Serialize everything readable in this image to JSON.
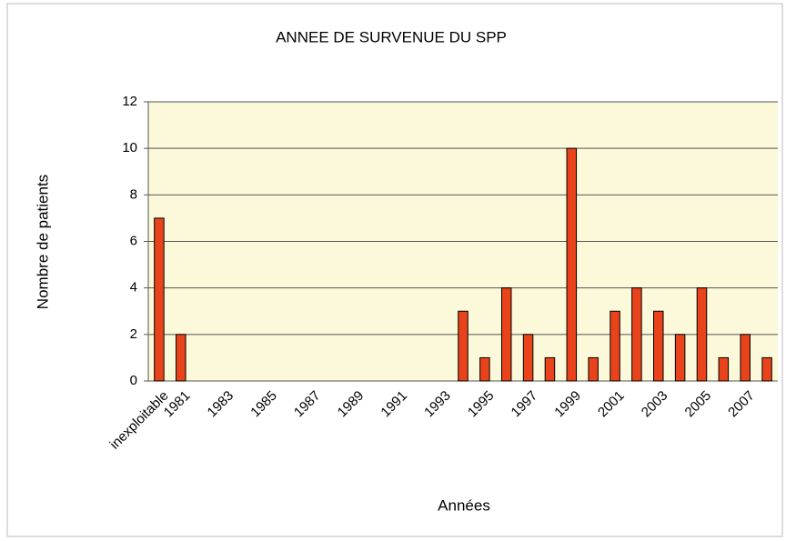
{
  "chart_data": {
    "type": "bar",
    "title": "ANNEE DE SURVENUE DU SPP",
    "x_label": "Années",
    "y_label": "Nombre de patients",
    "categories": [
      "inexploitable",
      "1981",
      null,
      "1983",
      null,
      "1985",
      null,
      "1987",
      null,
      "1989",
      null,
      "1991",
      null,
      "1993",
      null,
      "1995",
      null,
      "1997",
      null,
      "1999",
      null,
      "2001",
      null,
      "2003",
      null,
      "2005",
      null,
      "2007",
      null
    ],
    "values": [
      7,
      2,
      0,
      0,
      0,
      0,
      0,
      0,
      0,
      0,
      0,
      0,
      0,
      0,
      3,
      1,
      4,
      2,
      1,
      10,
      1,
      3,
      4,
      3,
      2,
      4,
      1,
      2,
      1
    ],
    "color": "#e8431a",
    "ylim": [
      0,
      12
    ],
    "yticks": [
      0,
      2,
      4,
      6,
      8,
      10,
      12
    ],
    "grid": true
  }
}
